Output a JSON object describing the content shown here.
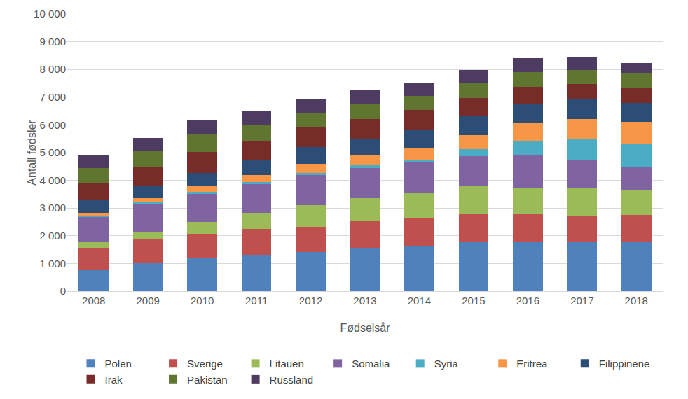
{
  "chart_data": {
    "type": "bar",
    "stacked": true,
    "grid": true,
    "legend": "bottom",
    "x_label": "Fødselsår",
    "y_label": "Antall fødsler",
    "categories": [
      "2008",
      "2009",
      "2010",
      "2011",
      "2012",
      "2013",
      "2014",
      "2015",
      "2016",
      "2017",
      "2018"
    ],
    "ylim": [
      0,
      10000
    ],
    "yticks": [
      0,
      {
        "value": 1000,
        "label": "1 000"
      },
      {
        "value": 2000,
        "label": "2 000"
      },
      {
        "value": 3000,
        "label": "3 000"
      },
      {
        "value": 4000,
        "label": "4 000"
      },
      {
        "value": 5000,
        "label": "5 000"
      },
      {
        "value": 6000,
        "label": "6 000"
      },
      {
        "value": 7000,
        "label": "7 000"
      },
      {
        "value": 8000,
        "label": "8 000"
      },
      {
        "value": 9000,
        "label": "9 000"
      },
      {
        "value": 10000,
        "label": "10 000"
      }
    ],
    "series": [
      {
        "name": "Polen",
        "color": "#4f81bd",
        "values": [
          750,
          1000,
          1200,
          1320,
          1420,
          1570,
          1630,
          1780,
          1780,
          1780,
          1780
        ]
      },
      {
        "name": "Sverige",
        "color": "#c0504d",
        "values": [
          800,
          880,
          880,
          930,
          910,
          950,
          990,
          1020,
          1020,
          950,
          970
        ]
      },
      {
        "name": "Litauen",
        "color": "#9bbb59",
        "values": [
          220,
          270,
          420,
          570,
          770,
          850,
          950,
          980,
          950,
          970,
          880
        ]
      },
      {
        "name": "Somalia",
        "color": "#8064a2",
        "values": [
          910,
          1000,
          1000,
          1050,
          1100,
          1080,
          1080,
          1100,
          1150,
          1020,
          870
        ]
      },
      {
        "name": "Syria",
        "color": "#4bacc6",
        "values": [
          30,
          50,
          80,
          80,
          80,
          100,
          100,
          250,
          530,
          750,
          820
        ]
      },
      {
        "name": "Eritrea",
        "color": "#f79646",
        "values": [
          120,
          150,
          200,
          250,
          320,
          380,
          420,
          500,
          620,
          730,
          780
        ]
      },
      {
        "name": "Filippinene",
        "color": "#2c4d75",
        "values": [
          470,
          450,
          500,
          530,
          600,
          570,
          660,
          720,
          700,
          720,
          700
        ]
      },
      {
        "name": "Irak",
        "color": "#772c2a",
        "values": [
          580,
          690,
          750,
          700,
          700,
          700,
          700,
          620,
          620,
          550,
          530
        ]
      },
      {
        "name": "Pakistan",
        "color": "#5f7530",
        "values": [
          570,
          560,
          620,
          590,
          530,
          580,
          520,
          550,
          530,
          510,
          520
        ]
      },
      {
        "name": "Russland",
        "color": "#4d3b62",
        "values": [
          470,
          480,
          500,
          500,
          520,
          470,
          470,
          460,
          500,
          470,
          380
        ]
      }
    ]
  }
}
